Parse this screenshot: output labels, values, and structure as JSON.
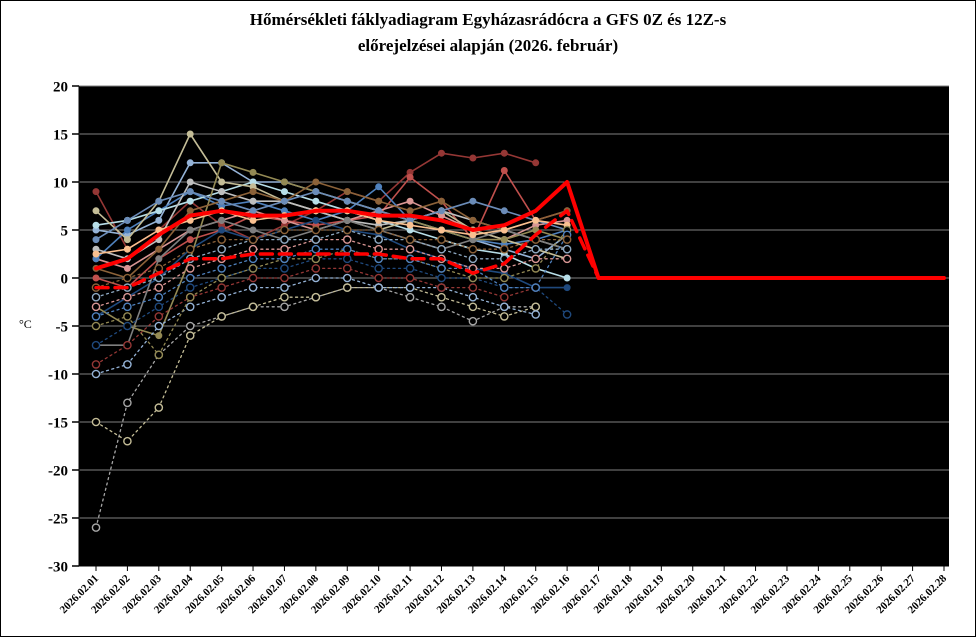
{
  "title": {
    "line1": "Hőmérsékleti fáklyadiagram Egyházasrádócra a GFS 0Z és 12Z-s",
    "line2": "előrejelzései alapján (2026. február)"
  },
  "chart_data": {
    "type": "line",
    "title": "Hőmérsékleti fáklyadiagram Egyházasrádócra a GFS 0Z és 12Z-s előrejelzései alapján (2026. február)",
    "ylabel": "°C",
    "xlabel": "",
    "ylim": [
      -30,
      20
    ],
    "ytick_step": 5,
    "ytick_labels": [
      "20",
      "15",
      "10",
      "5",
      "0",
      "-5",
      "-10",
      "-15",
      "-20",
      "-25",
      "-30"
    ],
    "grid": true,
    "legend_position": "none",
    "plot_background": "#000000",
    "grid_color": "#7f7f7f",
    "accent_color": "#ff0000",
    "x_categories": [
      "2026.02.01",
      "2026.02.02",
      "2026.02.03",
      "2026.02.04",
      "2026.02.05",
      "2026.02.06",
      "2026.02.07",
      "2026.02.08",
      "2026.02.09",
      "2026.02.10",
      "2026.02.11",
      "2026.02.12",
      "2026.02.13",
      "2026.02.14",
      "2026.02.15",
      "2026.02.16",
      "2026.02.17",
      "2026.02.18",
      "2026.02.19",
      "2026.02.20",
      "2026.02.21",
      "2026.02.22",
      "2026.02.23",
      "2026.02.24",
      "2026.02.25",
      "2026.02.26",
      "2026.02.27",
      "2026.02.28"
    ],
    "series": [
      {
        "name": "member-max-01",
        "color": "#953735",
        "style": "solid",
        "width": 1.6,
        "marker": "filled",
        "values": [
          9,
          3,
          5,
          8,
          5.5,
          4,
          5.5,
          7,
          9,
          8,
          11,
          13,
          12.5,
          13,
          12,
          null
        ]
      },
      {
        "name": "member-max-02",
        "color": "#C0504D",
        "style": "solid",
        "width": 1.6,
        "marker": "filled",
        "values": [
          0,
          -1,
          2,
          4,
          5,
          6.5,
          6,
          5.5,
          6,
          6.5,
          10.5,
          8,
          4,
          11.2,
          6,
          7
        ]
      },
      {
        "name": "member-max-03",
        "color": "#D99694",
        "style": "solid",
        "width": 1.6,
        "marker": "filled",
        "values": [
          2,
          1,
          3,
          5,
          6,
          7,
          6,
          5,
          6,
          7,
          8,
          6.5,
          5,
          4,
          5.5,
          6
        ]
      },
      {
        "name": "member-max-04",
        "color": "#95B3D7",
        "style": "solid",
        "width": 1.6,
        "marker": "filled",
        "values": [
          5,
          4.5,
          6,
          12,
          12,
          10,
          10,
          9,
          8,
          7,
          6,
          5,
          4,
          3,
          2,
          4.5
        ]
      },
      {
        "name": "member-max-05",
        "color": "#4F81BD",
        "style": "solid",
        "width": 1.6,
        "marker": "filled",
        "values": [
          2,
          5,
          7,
          9,
          7.5,
          8,
          7,
          6,
          7,
          9.5,
          6,
          5,
          4,
          3.5,
          4,
          5
        ]
      },
      {
        "name": "member-max-06",
        "color": "#1F497D",
        "style": "solid",
        "width": 1.6,
        "marker": "filled",
        "values": [
          -4,
          -2,
          0,
          3,
          5,
          4,
          5,
          6,
          5,
          4.5,
          3,
          2,
          1,
          0.5,
          -1,
          -1
        ]
      },
      {
        "name": "member-max-07",
        "color": "#B7DEE8",
        "style": "solid",
        "width": 1.6,
        "marker": "filled",
        "values": [
          5.5,
          6,
          7,
          8,
          9,
          10,
          9,
          8,
          7,
          6,
          5,
          4,
          3,
          2.5,
          1,
          0
        ]
      },
      {
        "name": "member-max-08",
        "color": "#C4BD97",
        "style": "solid",
        "width": 1.6,
        "marker": "filled",
        "values": [
          7,
          4,
          8,
          15,
          10,
          9.5,
          8,
          7,
          6,
          5,
          6,
          7,
          5,
          4,
          3,
          2
        ]
      },
      {
        "name": "member-max-09",
        "color": "#948A54",
        "style": "solid",
        "width": 1.6,
        "marker": "filled",
        "values": [
          -3,
          -5,
          -6,
          2,
          12,
          11,
          10,
          9,
          8,
          7,
          6,
          5,
          4,
          4,
          5,
          4
        ]
      },
      {
        "name": "member-max-10",
        "color": "#BFBFBF",
        "style": "solid",
        "width": 1.6,
        "marker": "filled",
        "values": [
          3,
          2,
          4,
          10,
          9,
          8,
          8,
          7,
          6,
          5.5,
          6,
          7,
          6,
          5,
          4,
          3
        ]
      },
      {
        "name": "member-max-11",
        "color": "#7F7F7F",
        "style": "solid",
        "width": 1.6,
        "marker": "filled",
        "values": [
          -7,
          -7,
          2,
          5,
          6,
          5,
          4,
          5,
          6,
          5,
          4,
          3,
          4,
          5,
          4,
          3
        ]
      },
      {
        "name": "member-max-12",
        "color": "#8C6239",
        "style": "solid",
        "width": 1.6,
        "marker": "filled",
        "values": [
          1,
          0,
          3,
          7,
          8,
          9,
          8,
          10,
          9,
          8,
          7,
          8,
          6,
          5,
          6,
          7
        ]
      },
      {
        "name": "member-max-13",
        "color": "#6B8CB8",
        "style": "solid",
        "width": 1.6,
        "marker": "filled",
        "values": [
          4,
          6,
          8,
          9,
          8,
          7,
          8,
          9,
          8,
          7,
          6,
          7,
          8,
          7,
          6,
          5
        ]
      },
      {
        "name": "member-max-14",
        "color": "#FAC090",
        "style": "solid",
        "width": 1.6,
        "marker": "filled",
        "values": [
          2.5,
          3,
          5,
          6,
          7,
          6,
          6.5,
          7,
          7,
          6,
          5.5,
          5,
          4.5,
          5,
          6,
          5.5
        ]
      },
      {
        "name": "member-min-01",
        "color": "#A6A6A6",
        "style": "dotted",
        "width": 1.3,
        "marker": "hollow",
        "values": [
          -26,
          -13,
          -8,
          -5,
          -4,
          -3,
          -3,
          -2,
          -1,
          -1,
          -2,
          -3,
          -4.5,
          -3,
          -3,
          null
        ]
      },
      {
        "name": "member-min-02",
        "color": "#C4BD97",
        "style": "dotted",
        "width": 1.3,
        "marker": "hollow",
        "values": [
          -15,
          -17,
          -13.5,
          -6,
          -4,
          -3,
          -2,
          -2,
          -1,
          -1,
          -1,
          -2,
          -3,
          -4,
          -3,
          null
        ]
      },
      {
        "name": "member-min-03",
        "color": "#95B3D7",
        "style": "dotted",
        "width": 1.3,
        "marker": "hollow",
        "values": [
          -10,
          -9,
          -5,
          -3,
          -2,
          -1,
          -1,
          0,
          0,
          -1,
          -1,
          -1,
          -2,
          -3,
          -3.8,
          null
        ]
      },
      {
        "name": "member-min-04",
        "color": "#953735",
        "style": "dotted",
        "width": 1.3,
        "marker": "hollow",
        "values": [
          -9,
          -7,
          -4,
          -2,
          -1,
          0,
          0,
          1,
          1,
          0,
          0,
          -1,
          -1,
          -2,
          -1,
          null
        ]
      },
      {
        "name": "member-min-05",
        "color": "#1F497D",
        "style": "dotted",
        "width": 1.3,
        "marker": "hollow",
        "values": [
          -7,
          -5,
          -3,
          -1,
          0,
          1,
          1,
          2,
          2,
          1,
          1,
          0,
          0,
          -1,
          -1,
          -3.8
        ]
      },
      {
        "name": "member-min-06",
        "color": "#948A54",
        "style": "dotted",
        "width": 1.3,
        "marker": "hollow",
        "values": [
          -5,
          -4,
          -8,
          -2,
          0,
          1,
          2,
          2,
          3,
          2,
          2,
          1,
          0,
          0,
          1,
          5
        ]
      },
      {
        "name": "member-min-07",
        "color": "#4F81BD",
        "style": "dotted",
        "width": 1.3,
        "marker": "hollow",
        "values": [
          -4,
          -3,
          -2,
          0,
          1,
          2,
          2,
          3,
          3,
          2,
          2,
          1,
          1,
          -1,
          -1,
          4.5
        ]
      },
      {
        "name": "member-min-08",
        "color": "#D99694",
        "style": "dotted",
        "width": 1.3,
        "marker": "hollow",
        "values": [
          -3,
          -2,
          -1,
          1,
          2,
          3,
          3,
          4,
          4,
          3,
          3,
          2,
          1,
          1,
          2,
          2
        ]
      },
      {
        "name": "member-min-09",
        "color": "#8EA9C2",
        "style": "dotted",
        "width": 1.3,
        "marker": "hollow",
        "values": [
          -2,
          -1,
          0,
          2,
          3,
          4,
          4,
          4,
          5,
          4,
          4,
          3,
          2,
          2,
          3,
          3
        ]
      },
      {
        "name": "member-min-10",
        "color": "#8C6239",
        "style": "dotted",
        "width": 1.3,
        "marker": "hollow",
        "values": [
          -1,
          0,
          1,
          3,
          4,
          4,
          5,
          5,
          5,
          5,
          4,
          4,
          3,
          3,
          4,
          4
        ]
      },
      {
        "name": "mean-min-line",
        "color": "#FF0000",
        "style": "dashed",
        "width": 3.5,
        "marker": "none",
        "values": [
          -1,
          -1,
          0.5,
          2,
          2,
          2.5,
          2.5,
          2.5,
          2.5,
          2.5,
          2,
          2,
          0.5,
          1.5,
          4.5,
          7,
          0,
          0,
          0,
          0,
          0,
          0,
          0,
          0,
          0,
          0,
          0,
          0
        ]
      },
      {
        "name": "mean-max-line",
        "color": "#FF0000",
        "style": "solid",
        "width": 4,
        "marker": "none",
        "values": [
          1,
          2,
          4.5,
          6.5,
          7,
          6.5,
          6.5,
          7,
          7,
          6.5,
          6.5,
          6,
          5,
          5.5,
          7,
          10,
          0,
          0,
          0,
          0,
          0,
          0,
          0,
          0,
          0,
          0,
          0,
          0
        ]
      }
    ]
  }
}
